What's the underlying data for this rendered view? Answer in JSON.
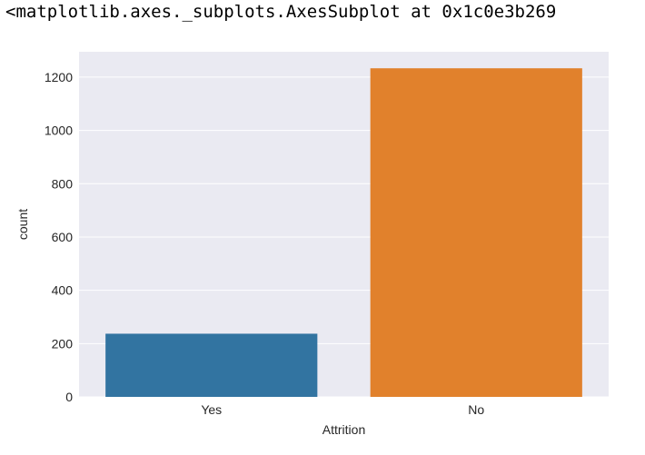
{
  "output_text": "<matplotlib.axes._subplots.AxesSubplot at 0x1c0e3b269",
  "chart_data": {
    "type": "bar",
    "categories": [
      "Yes",
      "No"
    ],
    "values": [
      237,
      1233
    ],
    "colors": [
      "#3274a1",
      "#e1812c"
    ],
    "xlabel": "Attrition",
    "ylabel": "count",
    "ylim": [
      0,
      1295
    ],
    "yticks": [
      0,
      200,
      400,
      600,
      800,
      1000,
      1200
    ],
    "grid": true,
    "background": "#eaeaf2",
    "gridline_color": "#ffffff"
  }
}
